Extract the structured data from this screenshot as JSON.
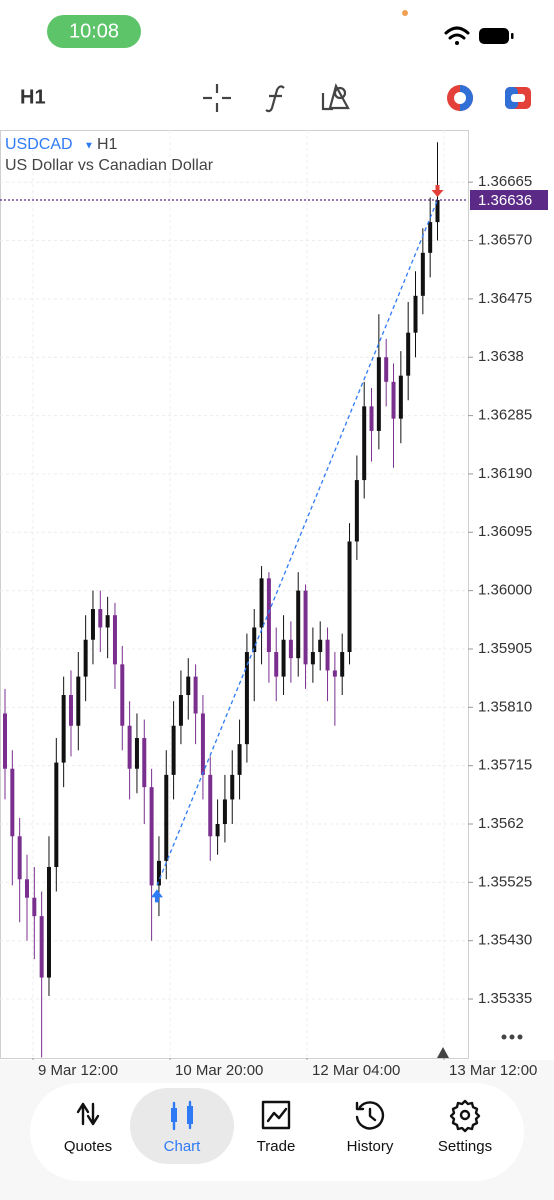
{
  "status_bar": {
    "time": "10:08"
  },
  "toolbar": {
    "timeframe": "H1"
  },
  "chart_data": {
    "type": "candlestick",
    "symbol": "USDCAD",
    "timeframe": "H1",
    "description": "US Dollar vs Canadian Dollar",
    "open": [
      1.358,
      1.3571,
      1.356,
      1.3553,
      1.355,
      1.3547,
      1.3537,
      1.3555,
      1.3572,
      1.3583,
      1.3578,
      1.3586,
      1.3592,
      1.3597,
      1.3594,
      1.3596,
      1.3588,
      1.3578,
      1.3571,
      1.3576,
      1.3568,
      1.3552,
      1.3556,
      1.357,
      1.3578,
      1.3583,
      1.3586,
      1.358,
      1.357,
      1.356,
      1.3562,
      1.3566,
      1.357,
      1.3575,
      1.359,
      1.3594,
      1.3602,
      1.359,
      1.3586,
      1.3592,
      1.3589,
      1.36,
      1.3588,
      1.359,
      1.3592,
      1.3587,
      1.3586,
      1.359,
      1.3608,
      1.3618,
      1.363,
      1.3626,
      1.3638,
      1.3634,
      1.3628,
      1.3635,
      1.3642,
      1.3648,
      1.3655,
      1.366
    ],
    "high": [
      1.3584,
      1.3574,
      1.3563,
      1.3557,
      1.3555,
      1.3551,
      1.356,
      1.3576,
      1.3586,
      1.3587,
      1.359,
      1.3596,
      1.36,
      1.36,
      1.3599,
      1.3598,
      1.3591,
      1.3582,
      1.358,
      1.3579,
      1.3571,
      1.356,
      1.3574,
      1.3582,
      1.3587,
      1.3589,
      1.3588,
      1.3583,
      1.3573,
      1.3566,
      1.357,
      1.3574,
      1.3579,
      1.3593,
      1.3597,
      1.3604,
      1.3603,
      1.3594,
      1.3596,
      1.3595,
      1.3603,
      1.3601,
      1.3594,
      1.3595,
      1.3594,
      1.359,
      1.3593,
      1.3611,
      1.3622,
      1.3634,
      1.3633,
      1.3645,
      1.3641,
      1.3637,
      1.3639,
      1.3647,
      1.3652,
      1.3659,
      1.3664,
      1.3673
    ],
    "low": [
      1.3566,
      1.3552,
      1.3546,
      1.3543,
      1.354,
      1.3524,
      1.3534,
      1.3551,
      1.3568,
      1.3573,
      1.3574,
      1.3582,
      1.3588,
      1.359,
      1.3589,
      1.3584,
      1.3574,
      1.3566,
      1.3567,
      1.3562,
      1.3543,
      1.3547,
      1.3553,
      1.3566,
      1.3575,
      1.3579,
      1.3575,
      1.3566,
      1.3556,
      1.3557,
      1.3559,
      1.3562,
      1.3566,
      1.3572,
      1.3582,
      1.3588,
      1.3585,
      1.3582,
      1.3583,
      1.3585,
      1.3586,
      1.3584,
      1.3585,
      1.3587,
      1.3582,
      1.3578,
      1.3583,
      1.3588,
      1.3605,
      1.3615,
      1.3621,
      1.3623,
      1.363,
      1.362,
      1.3624,
      1.3631,
      1.3638,
      1.3645,
      1.3651,
      1.3657
    ],
    "close": [
      1.3571,
      1.356,
      1.3553,
      1.355,
      1.3547,
      1.3537,
      1.3555,
      1.3572,
      1.3583,
      1.3578,
      1.3586,
      1.3592,
      1.3597,
      1.3594,
      1.3596,
      1.3588,
      1.3578,
      1.3571,
      1.3576,
      1.3568,
      1.3552,
      1.3556,
      1.357,
      1.3578,
      1.3583,
      1.3586,
      1.358,
      1.357,
      1.356,
      1.3562,
      1.3566,
      1.357,
      1.3575,
      1.359,
      1.3594,
      1.3602,
      1.359,
      1.3586,
      1.3592,
      1.3589,
      1.36,
      1.3588,
      1.359,
      1.3592,
      1.3587,
      1.3586,
      1.359,
      1.3608,
      1.3618,
      1.363,
      1.3626,
      1.3638,
      1.3634,
      1.3628,
      1.3635,
      1.3642,
      1.3648,
      1.3655,
      1.366,
      1.36636
    ],
    "xticks": [
      "9 Mar 12:00",
      "10 Mar 20:00",
      "12 Mar 04:00",
      "13 Mar 12:00"
    ],
    "ylim": [
      1.35239,
      1.3675
    ],
    "yticks": [
      1.36665,
      {
        "value": 1.3657,
        "label": "1.36570"
      },
      1.36475,
      1.3638,
      1.36285,
      {
        "value": 1.3619,
        "label": "1.36190"
      },
      1.36095,
      {
        "value": 1.36,
        "label": "1.36000"
      },
      1.35905,
      {
        "value": 1.3581,
        "label": "1.35810"
      },
      1.35715,
      1.3562,
      1.35525,
      {
        "value": 1.3543,
        "label": "1.35430"
      },
      1.35335
    ],
    "grid": true,
    "up_color": "#111111",
    "down_color": "#7a2f8f",
    "price_line_color": "#5b2a86",
    "trendline_color": "#2f7bf5"
  },
  "tab_bar": {
    "tabs": [
      "Quotes",
      "Chart",
      "Trade",
      "History",
      "Settings"
    ],
    "active": 1
  }
}
